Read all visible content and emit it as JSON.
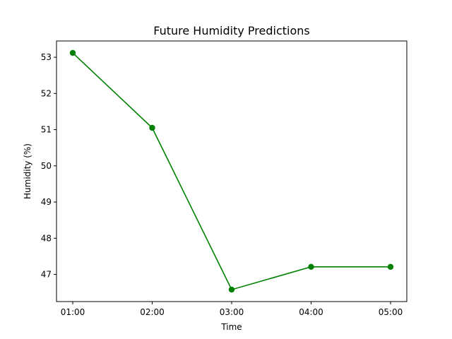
{
  "chart_data": {
    "type": "line",
    "title": "Future Humidity Predictions",
    "xlabel": "Time",
    "ylabel": "Humidity (%)",
    "categories": [
      "01:00",
      "02:00",
      "03:00",
      "04:00",
      "05:00"
    ],
    "series": [
      {
        "values": [
          53.12,
          51.05,
          46.58,
          47.21,
          47.21
        ],
        "color": "#008000",
        "marker": "circle"
      }
    ],
    "ylim": [
      46.25,
      53.45
    ],
    "yticks": [
      47,
      48,
      49,
      50,
      51,
      52,
      53
    ],
    "grid": false,
    "legend": "none"
  }
}
